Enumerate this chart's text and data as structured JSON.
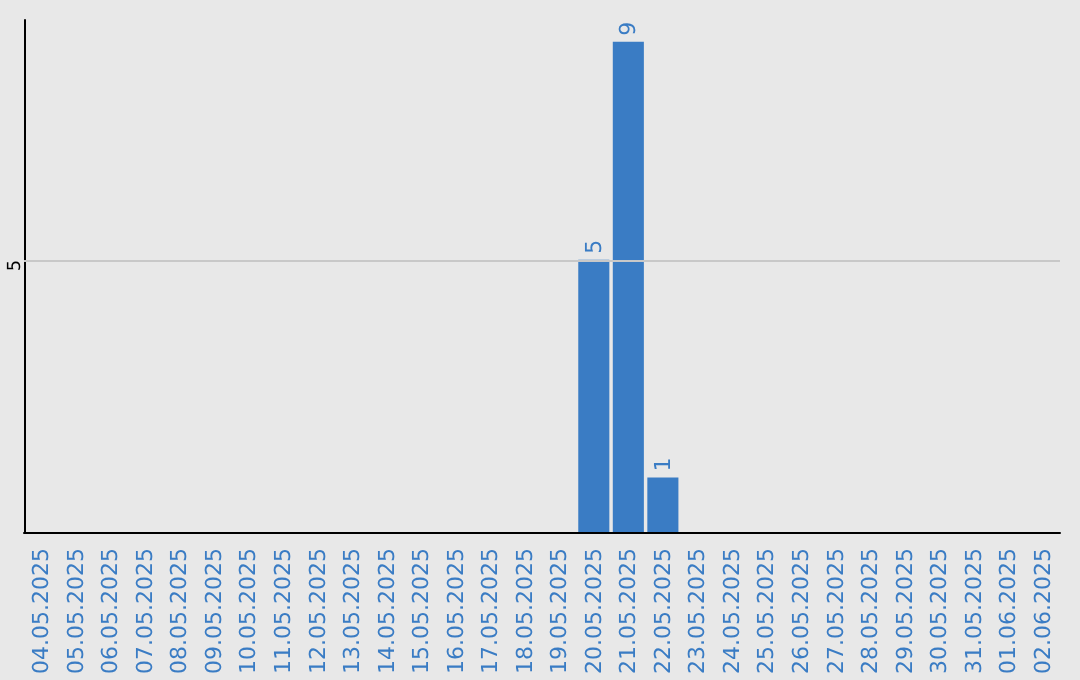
{
  "chart_data": {
    "type": "bar",
    "categories": [
      "04.05.2025",
      "05.05.2025",
      "06.05.2025",
      "07.05.2025",
      "08.05.2025",
      "09.05.2025",
      "10.05.2025",
      "11.05.2025",
      "12.05.2025",
      "13.05.2025",
      "14.05.2025",
      "15.05.2025",
      "16.05.2025",
      "17.05.2025",
      "18.05.2025",
      "19.05.2025",
      "20.05.2025",
      "21.05.2025",
      "22.05.2025",
      "23.05.2025",
      "24.05.2025",
      "25.05.2025",
      "26.05.2025",
      "27.05.2025",
      "28.05.2025",
      "29.05.2025",
      "30.05.2025",
      "31.05.2025",
      "01.06.2025",
      "02.06.2025"
    ],
    "values": [
      null,
      null,
      null,
      null,
      null,
      null,
      null,
      null,
      null,
      null,
      null,
      null,
      null,
      null,
      null,
      null,
      5,
      9,
      1,
      null,
      null,
      null,
      null,
      null,
      null,
      null,
      null,
      null,
      null,
      null
    ],
    "value_labels": [
      null,
      null,
      null,
      null,
      null,
      null,
      null,
      null,
      null,
      null,
      null,
      null,
      null,
      null,
      null,
      null,
      "5",
      "9",
      "1",
      null,
      null,
      null,
      null,
      null,
      null,
      null,
      null,
      null,
      null,
      null
    ],
    "color": "#3a7cc4",
    "ylim": [
      0,
      9.4
    ],
    "ref_lines": [
      {
        "axis": "y",
        "value": 5,
        "label": "5",
        "color": "#c8c8c8"
      }
    ]
  }
}
